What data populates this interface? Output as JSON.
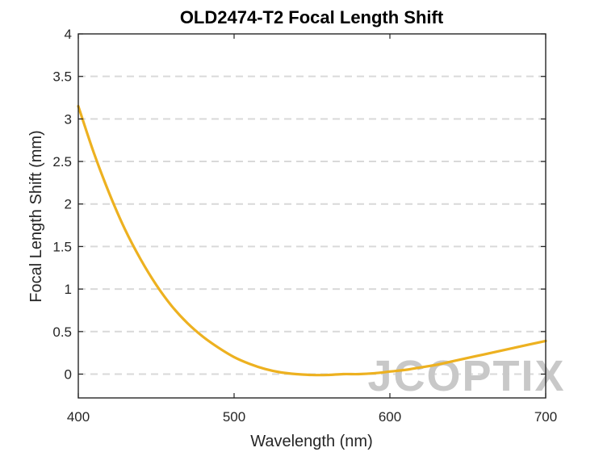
{
  "chart_data": {
    "type": "line",
    "title": "OLD2474-T2 Focal Length Shift",
    "xlabel": "Wavelength (nm)",
    "ylabel": "Focal Length Shift (mm)",
    "xlim": [
      400,
      700
    ],
    "ylim": [
      -0.28,
      4
    ],
    "xticks": [
      400,
      500,
      600,
      700
    ],
    "yticks": [
      0,
      0.5,
      1,
      1.5,
      2,
      2.5,
      3,
      3.5,
      4
    ],
    "ytick_labels": [
      "0",
      "0.5",
      "1",
      "1.5",
      "2",
      "2.5",
      "3",
      "3.5",
      "4"
    ],
    "xtick_labels": [
      "400",
      "500",
      "600",
      "700"
    ],
    "grid": "horizontal-dashed",
    "watermark": "JCOPTIX",
    "series": [
      {
        "name": "Focal Length Shift",
        "color": "#EDB120",
        "x": [
          400,
          410,
          420,
          430,
          440,
          450,
          460,
          470,
          480,
          490,
          500,
          510,
          520,
          530,
          540,
          550,
          560,
          570,
          580,
          590,
          600,
          610,
          620,
          630,
          640,
          650,
          660,
          670,
          680,
          690,
          700
        ],
        "y": [
          3.15,
          2.6,
          2.12,
          1.7,
          1.35,
          1.05,
          0.8,
          0.6,
          0.44,
          0.31,
          0.2,
          0.12,
          0.06,
          0.02,
          0.0,
          -0.01,
          -0.01,
          0.0,
          0.0,
          0.01,
          0.03,
          0.05,
          0.08,
          0.11,
          0.15,
          0.19,
          0.23,
          0.27,
          0.31,
          0.35,
          0.39
        ]
      }
    ]
  }
}
